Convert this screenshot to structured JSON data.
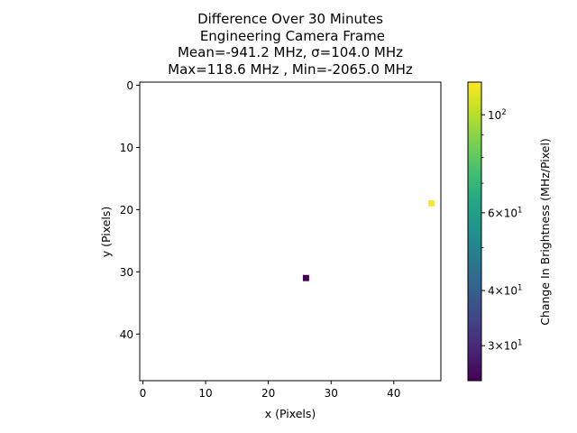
{
  "chart_data": {
    "type": "heatmap",
    "title_lines": [
      "Difference Over 30 Minutes",
      " Engineering Camera Frame",
      "Mean=-941.2 MHz, σ=104.0 MHz",
      "Max=118.6 MHz , Min=-2065.0 MHz"
    ],
    "xlabel": "x (Pixels)",
    "ylabel": "y (Pixels)",
    "xlim": [
      -0.5,
      47.5
    ],
    "ylim": [
      47.5,
      -0.5
    ],
    "x_ticks": [
      0,
      10,
      20,
      30,
      40
    ],
    "y_ticks": [
      0,
      10,
      20,
      30,
      40
    ],
    "pixels": [
      {
        "x": 46,
        "y": 19,
        "value": 118.6
      },
      {
        "x": 26,
        "y": 31,
        "value": 25
      }
    ],
    "colorbar": {
      "label": "Change In Brightness (MHz/Pixel)",
      "scale": "log",
      "colormap": "viridis",
      "range": [
        25,
        118.6
      ],
      "ticks": [
        {
          "value": 100,
          "base": "10",
          "exp": "2"
        },
        {
          "value": 60,
          "base": "6×10",
          "exp": "1"
        },
        {
          "value": 40,
          "base": "4×10",
          "exp": "1"
        },
        {
          "value": 30,
          "base": "3×10",
          "exp": "1"
        }
      ],
      "minor_ticks": [
        50,
        70,
        80,
        90
      ]
    },
    "colors": {
      "viridis_low": "#440154",
      "viridis_high": "#fde725"
    }
  }
}
